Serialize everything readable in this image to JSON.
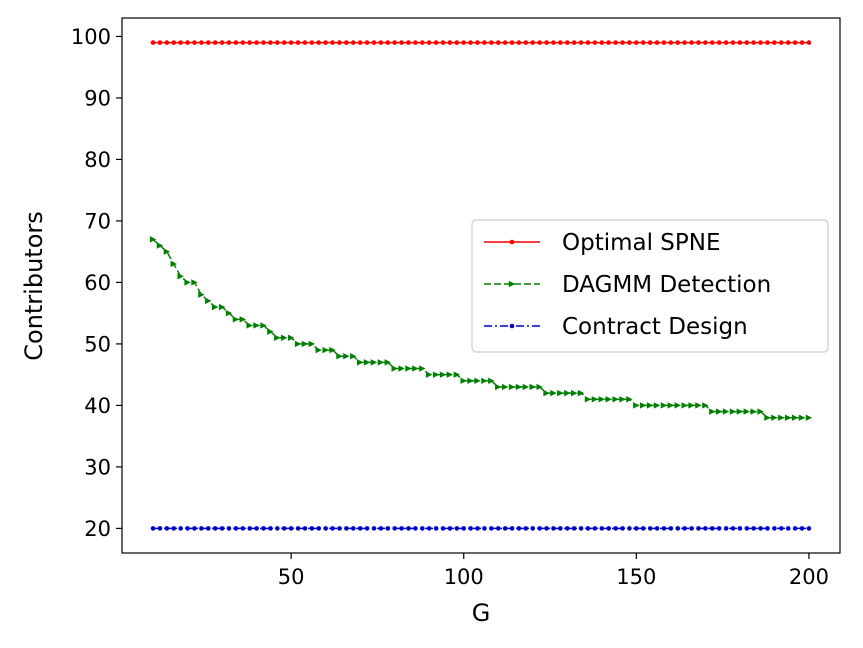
{
  "chart_data": {
    "type": "line",
    "title": "",
    "xlabel": "G",
    "ylabel": "Contributors",
    "xlim": [
      1,
      209
    ],
    "ylim": [
      16,
      103
    ],
    "xticks": [
      50,
      100,
      150,
      200
    ],
    "yticks": [
      20,
      30,
      40,
      50,
      60,
      70,
      80,
      90,
      100
    ],
    "grid": false,
    "legend_position": "center-right",
    "x": [
      10,
      12,
      14,
      16,
      18,
      20,
      22,
      24,
      26,
      28,
      30,
      32,
      34,
      36,
      38,
      40,
      42,
      44,
      46,
      48,
      50,
      52,
      54,
      56,
      58,
      60,
      62,
      64,
      66,
      68,
      70,
      72,
      74,
      76,
      78,
      80,
      82,
      84,
      86,
      88,
      90,
      92,
      94,
      96,
      98,
      100,
      102,
      104,
      106,
      108,
      110,
      112,
      114,
      116,
      118,
      120,
      122,
      124,
      126,
      128,
      130,
      132,
      134,
      136,
      138,
      140,
      142,
      144,
      146,
      148,
      150,
      152,
      154,
      156,
      158,
      160,
      162,
      164,
      166,
      168,
      170,
      172,
      174,
      176,
      178,
      180,
      182,
      184,
      186,
      188,
      190,
      192,
      194,
      196,
      198,
      200
    ],
    "series": [
      {
        "name": "Optimal SPNE",
        "color": "#ff0000",
        "linestyle": "solid",
        "marker": "dot",
        "values": [
          99,
          99,
          99,
          99,
          99,
          99,
          99,
          99,
          99,
          99,
          99,
          99,
          99,
          99,
          99,
          99,
          99,
          99,
          99,
          99,
          99,
          99,
          99,
          99,
          99,
          99,
          99,
          99,
          99,
          99,
          99,
          99,
          99,
          99,
          99,
          99,
          99,
          99,
          99,
          99,
          99,
          99,
          99,
          99,
          99,
          99,
          99,
          99,
          99,
          99,
          99,
          99,
          99,
          99,
          99,
          99,
          99,
          99,
          99,
          99,
          99,
          99,
          99,
          99,
          99,
          99,
          99,
          99,
          99,
          99,
          99,
          99,
          99,
          99,
          99,
          99,
          99,
          99,
          99,
          99,
          99,
          99,
          99,
          99,
          99,
          99,
          99,
          99,
          99,
          99,
          99,
          99,
          99,
          99,
          99,
          99
        ]
      },
      {
        "name": "DAGMM Detection",
        "color": "#008000",
        "linestyle": "dashed",
        "marker": "triangle-right",
        "values": [
          67,
          66,
          65,
          63,
          61,
          60,
          60,
          58,
          57,
          56,
          56,
          55,
          54,
          54,
          53,
          53,
          53,
          52,
          51,
          51,
          51,
          50,
          50,
          50,
          49,
          49,
          49,
          48,
          48,
          48,
          47,
          47,
          47,
          47,
          47,
          46,
          46,
          46,
          46,
          46,
          45,
          45,
          45,
          45,
          45,
          44,
          44,
          44,
          44,
          44,
          43,
          43,
          43,
          43,
          43,
          43,
          43,
          42,
          42,
          42,
          42,
          42,
          42,
          41,
          41,
          41,
          41,
          41,
          41,
          41,
          40,
          40,
          40,
          40,
          40,
          40,
          40,
          40,
          40,
          40,
          40,
          39,
          39,
          39,
          39,
          39,
          39,
          39,
          39,
          38,
          38,
          38,
          38,
          38,
          38,
          38
        ]
      },
      {
        "name": "Contract Design",
        "color": "#0000cc",
        "linestyle": "dashdot",
        "marker": "dot",
        "values": [
          20,
          20,
          20,
          20,
          20,
          20,
          20,
          20,
          20,
          20,
          20,
          20,
          20,
          20,
          20,
          20,
          20,
          20,
          20,
          20,
          20,
          20,
          20,
          20,
          20,
          20,
          20,
          20,
          20,
          20,
          20,
          20,
          20,
          20,
          20,
          20,
          20,
          20,
          20,
          20,
          20,
          20,
          20,
          20,
          20,
          20,
          20,
          20,
          20,
          20,
          20,
          20,
          20,
          20,
          20,
          20,
          20,
          20,
          20,
          20,
          20,
          20,
          20,
          20,
          20,
          20,
          20,
          20,
          20,
          20,
          20,
          20,
          20,
          20,
          20,
          20,
          20,
          20,
          20,
          20,
          20,
          20,
          20,
          20,
          20,
          20,
          20,
          20,
          20,
          20,
          20,
          20,
          20,
          20,
          20,
          20
        ]
      }
    ]
  }
}
